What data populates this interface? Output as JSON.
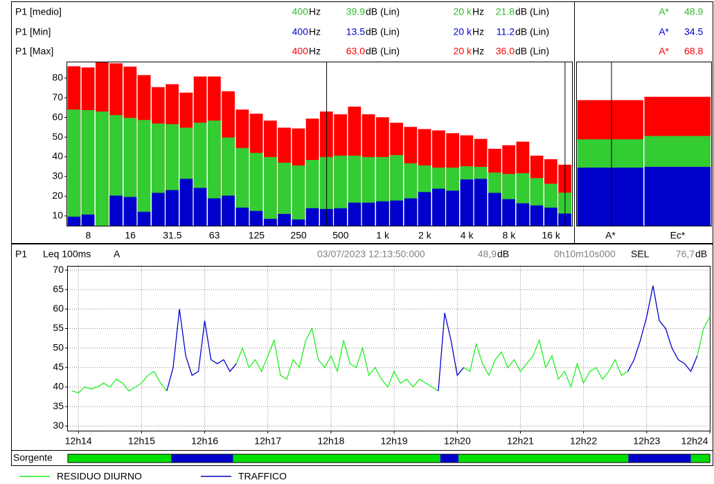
{
  "spectrum_header": {
    "rows": [
      {
        "label": "P1 [medio]",
        "color": "#2db82d",
        "freq1": "400",
        "freq_unit1": "Hz",
        "level1": "39.9",
        "level_unit1": "dB (Lin)",
        "freq2": "20 k",
        "freq_unit2": "Hz",
        "level2": "21.8",
        "level_unit2": "dB (Lin)",
        "band": "A*",
        "band_level": "48.9"
      },
      {
        "label": "P1 [Min]",
        "color": "#0000cc",
        "freq1": "400",
        "freq_unit1": "Hz",
        "level1": "13.5",
        "level_unit1": "dB (Lin)",
        "freq2": "20 k",
        "freq_unit2": "Hz",
        "level2": "11.2",
        "level_unit2": "dB (Lin)",
        "band": "A*",
        "band_level": "34.5"
      },
      {
        "label": "P1 [Max]",
        "color": "#ff0000",
        "freq1": "400",
        "freq_unit1": "Hz",
        "level1": "63.0",
        "level_unit1": "dB (Lin)",
        "freq2": "20 k",
        "freq_unit2": "Hz",
        "level2": "36.0",
        "level_unit2": "dB (Lin)",
        "band": "A*",
        "band_level": "68.8"
      }
    ]
  },
  "time_header": {
    "channel": "P1",
    "metric": "Leq 100ms",
    "weighting": "A",
    "timestamp": "03/07/2023 12:13:50:000",
    "level": "48,9",
    "level_unit": "dB",
    "duration": "0h10m10s000",
    "sel_label": "SEL",
    "sel": "76,7",
    "sel_unit": "dB"
  },
  "chart_data": [
    {
      "type": "bar",
      "bar_mode": "overlay",
      "categories": [
        null,
        "8",
        null,
        null,
        "16",
        null,
        null,
        "31.5",
        null,
        null,
        "63",
        null,
        null,
        "125",
        null,
        null,
        "250",
        null,
        null,
        "500",
        null,
        null,
        "1 k",
        null,
        null,
        "2 k",
        null,
        null,
        "4 k",
        null,
        null,
        "8 k",
        null,
        null,
        "16 k",
        null
      ],
      "series": [
        {
          "color": "#ff0000",
          "values": [
            86,
            85.4,
            88,
            87.5,
            85.8,
            81.5,
            75.4,
            76.9,
            72.6,
            80.8,
            80.8,
            73.3,
            64,
            61.9,
            58.4,
            54.8,
            54.4,
            59.4,
            63,
            61.6,
            65.5,
            61.6,
            60.1,
            57.3,
            55.2,
            54.1,
            53.4,
            52,
            50.9,
            49.1,
            44.1,
            45.9,
            47.7,
            40.6,
            38.8,
            36
          ]
        },
        {
          "color": "#33cc33",
          "values": [
            64,
            63.7,
            63,
            61.2,
            59.8,
            58.7,
            56.9,
            56.6,
            54.8,
            57.3,
            58.4,
            49.8,
            44.5,
            42,
            39.9,
            37,
            35.6,
            38.4,
            39.9,
            40.6,
            40.6,
            39.9,
            39.9,
            40.9,
            36.7,
            35.6,
            34.5,
            34.5,
            35.2,
            34.9,
            32,
            31.3,
            31.7,
            29.2,
            26.3,
            21.8
          ]
        },
        {
          "color": "#0000cc",
          "values": [
            9.6,
            10.7,
            5,
            20.3,
            19.6,
            12.1,
            21.7,
            23.1,
            28.8,
            24.2,
            18.9,
            20.3,
            14.2,
            12.5,
            8.5,
            11,
            8.2,
            13.9,
            13.5,
            13.9,
            16.7,
            16.7,
            17.4,
            17.8,
            18.9,
            22.1,
            23.8,
            22.8,
            28.5,
            28.8,
            21.7,
            18.5,
            16.4,
            15.3,
            14.2,
            11.2
          ]
        }
      ],
      "ylim": [
        5,
        88
      ],
      "yticks": [
        10,
        20,
        30,
        40,
        50,
        60,
        70,
        80
      ]
    },
    {
      "type": "bar",
      "bar_mode": "overlay",
      "categories": [
        "A*",
        "Ec*"
      ],
      "series": [
        {
          "color": "#ff0000",
          "values": [
            68.8,
            70.5
          ]
        },
        {
          "color": "#33cc33",
          "values": [
            48.9,
            50.6
          ]
        },
        {
          "color": "#0000cc",
          "values": [
            34.5,
            34.9
          ]
        }
      ],
      "ylim": [
        5,
        88
      ]
    },
    {
      "type": "line",
      "grid": true,
      "x": [
        733.9,
        734,
        734.1,
        734.2,
        734.3,
        734.4,
        734.5,
        734.6,
        734.7,
        734.8,
        734.9,
        735,
        735.1,
        735.2,
        735.3,
        735.4,
        735.5,
        735.6,
        735.7,
        735.8,
        735.9,
        736,
        736.1,
        736.2,
        736.3,
        736.4,
        736.5,
        736.6,
        736.7,
        736.8,
        736.9,
        737,
        737.1,
        737.2,
        737.3,
        737.4,
        737.5,
        737.6,
        737.7,
        737.8,
        737.9,
        738,
        738.1,
        738.2,
        738.3,
        738.4,
        738.5,
        738.6,
        738.7,
        738.8,
        738.9,
        739,
        739.1,
        739.2,
        739.3,
        739.4,
        739.5,
        739.6,
        739.7,
        739.8,
        739.9,
        740,
        740.1,
        740.2,
        740.3,
        740.4,
        740.5,
        740.6,
        740.7,
        740.8,
        740.9,
        741,
        741.1,
        741.2,
        741.3,
        741.4,
        741.5,
        741.6,
        741.7,
        741.8,
        741.9,
        742,
        742.1,
        742.2,
        742.3,
        742.4,
        742.5,
        742.6,
        742.7,
        742.8,
        742.9,
        743,
        743.1,
        743.2,
        743.3,
        743.4,
        743.5,
        743.6,
        743.7,
        743.8,
        743.9,
        744
      ],
      "series": [
        {
          "name": "RESIDUO DIURNO",
          "color": "#22ee22",
          "values": [
            39,
            38.5,
            40,
            39.5,
            40,
            41,
            40,
            42,
            41,
            39,
            40,
            41,
            43,
            44,
            41,
            39,
            null,
            null,
            null,
            null,
            null,
            null,
            null,
            null,
            null,
            null,
            46,
            50,
            45,
            47,
            44,
            48,
            52,
            43,
            42,
            47,
            45,
            52,
            55,
            47,
            45,
            48,
            44,
            52,
            46,
            45,
            50,
            43,
            45,
            42,
            40,
            44,
            41,
            42,
            40,
            42,
            41,
            40,
            39,
            null,
            null,
            null,
            45,
            44,
            51,
            46,
            43,
            47,
            49,
            45,
            47,
            44,
            46,
            48,
            52,
            45,
            48,
            42,
            44,
            40,
            46,
            41,
            44,
            45,
            42,
            44,
            47,
            43,
            44,
            null,
            null,
            null,
            null,
            null,
            null,
            null,
            null,
            null,
            null,
            48,
            55,
            58
          ]
        },
        {
          "name": "TRAFFICO",
          "color": "#0000cc",
          "values": [
            null,
            null,
            null,
            null,
            null,
            null,
            null,
            null,
            null,
            null,
            null,
            null,
            null,
            null,
            null,
            39,
            45,
            60,
            48,
            43,
            44,
            57,
            47,
            46,
            47,
            44,
            46,
            null,
            null,
            null,
            null,
            null,
            null,
            null,
            null,
            null,
            null,
            null,
            null,
            null,
            null,
            null,
            null,
            null,
            null,
            null,
            null,
            null,
            null,
            null,
            null,
            null,
            null,
            null,
            null,
            null,
            null,
            null,
            39,
            59,
            52,
            43,
            45,
            null,
            null,
            null,
            null,
            null,
            null,
            null,
            null,
            null,
            null,
            null,
            null,
            null,
            null,
            null,
            null,
            null,
            null,
            null,
            null,
            null,
            null,
            null,
            null,
            null,
            44,
            47,
            52,
            58,
            66,
            57,
            55,
            50,
            47,
            46,
            44,
            48,
            null,
            null
          ]
        }
      ],
      "xlim": [
        733.833,
        744.0
      ],
      "xticks": [
        {
          "value": 734,
          "label": "12h14"
        },
        {
          "value": 735,
          "label": "12h15"
        },
        {
          "value": 736,
          "label": "12h16"
        },
        {
          "value": 737,
          "label": "12h17"
        },
        {
          "value": 738,
          "label": "12h18"
        },
        {
          "value": 739,
          "label": "12h19"
        },
        {
          "value": 740,
          "label": "12h20"
        },
        {
          "value": 741,
          "label": "12h21"
        },
        {
          "value": 742,
          "label": "12h22"
        },
        {
          "value": 743,
          "label": "12h23"
        },
        {
          "value": 744,
          "label": "12h24"
        }
      ],
      "ylim": [
        28.8,
        70.9
      ],
      "yticks": [
        30,
        35,
        40,
        45,
        50,
        55,
        60,
        65,
        70
      ]
    }
  ],
  "sorgente": {
    "label": "Sorgente",
    "segments": [
      {
        "start": 733.833,
        "end": 735.47,
        "color": "#00e000"
      },
      {
        "start": 735.47,
        "end": 736.45,
        "color": "#0000cc"
      },
      {
        "start": 736.45,
        "end": 739.73,
        "color": "#00e000"
      },
      {
        "start": 739.73,
        "end": 740.02,
        "color": "#0000cc"
      },
      {
        "start": 740.02,
        "end": 742.71,
        "color": "#00e000"
      },
      {
        "start": 742.71,
        "end": 743.7,
        "color": "#0000cc"
      },
      {
        "start": 743.7,
        "end": 744.0,
        "color": "#00e000"
      }
    ]
  }
}
